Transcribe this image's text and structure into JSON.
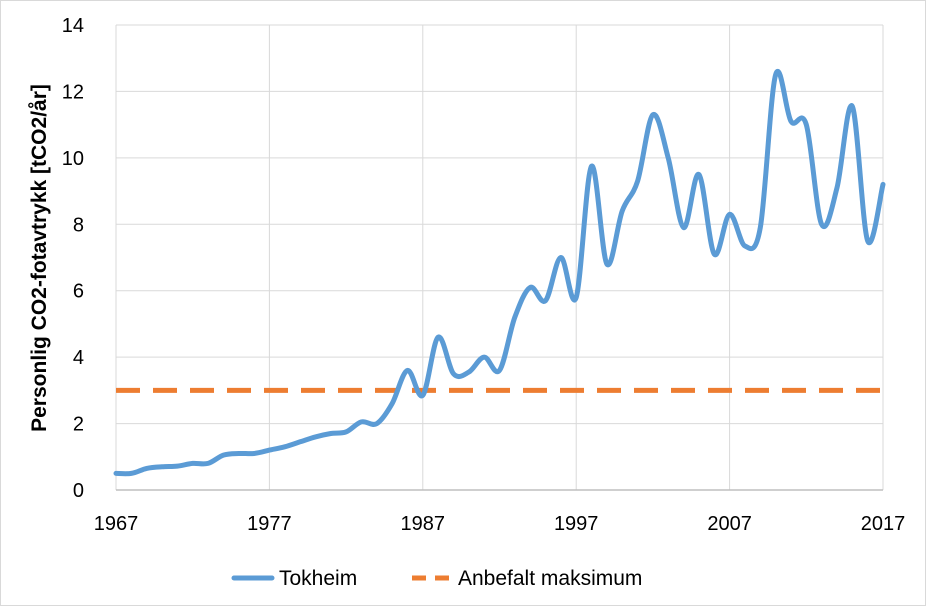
{
  "chart_data": {
    "type": "line",
    "title": "",
    "xlabel": "",
    "ylabel": "Personlig CO2-fotavtrykk [tCO2/år]",
    "xlim": [
      1967,
      2017
    ],
    "ylim": [
      0,
      14
    ],
    "x_ticks": [
      "1967",
      "1977",
      "1987",
      "1997",
      "2007",
      "2017"
    ],
    "y_ticks": [
      "0",
      "2",
      "4",
      "6",
      "8",
      "10",
      "12",
      "14"
    ],
    "grid": true,
    "legend_position": "bottom",
    "series": [
      {
        "name": "Tokheim",
        "color": "#5b9bd5",
        "x": [
          1967,
          1968,
          1969,
          1970,
          1971,
          1972,
          1973,
          1974,
          1975,
          1976,
          1977,
          1978,
          1979,
          1980,
          1981,
          1982,
          1983,
          1984,
          1985,
          1986,
          1987,
          1988,
          1989,
          1990,
          1991,
          1992,
          1993,
          1994,
          1995,
          1996,
          1997,
          1998,
          1999,
          2000,
          2001,
          2002,
          2003,
          2004,
          2005,
          2006,
          2007,
          2008,
          2009,
          2010,
          2011,
          2012,
          2013,
          2014,
          2015,
          2016,
          2017
        ],
        "y": [
          0.5,
          0.5,
          0.65,
          0.7,
          0.72,
          0.8,
          0.8,
          1.05,
          1.1,
          1.1,
          1.2,
          1.3,
          1.45,
          1.6,
          1.7,
          1.75,
          2.05,
          2.0,
          2.6,
          3.6,
          2.85,
          4.6,
          3.5,
          3.55,
          4.0,
          3.6,
          5.2,
          6.1,
          5.7,
          7.0,
          5.8,
          9.75,
          6.8,
          8.4,
          9.3,
          11.3,
          10.0,
          7.9,
          9.5,
          7.1,
          8.3,
          7.35,
          7.9,
          12.5,
          11.1,
          11.0,
          8.0,
          9.1,
          11.55,
          7.5,
          9.2
        ]
      },
      {
        "name": "Anbefalt maksimum",
        "color": "#ed7d31",
        "dashed": true,
        "x": [
          1967,
          2017
        ],
        "y": [
          3,
          3
        ]
      }
    ]
  }
}
